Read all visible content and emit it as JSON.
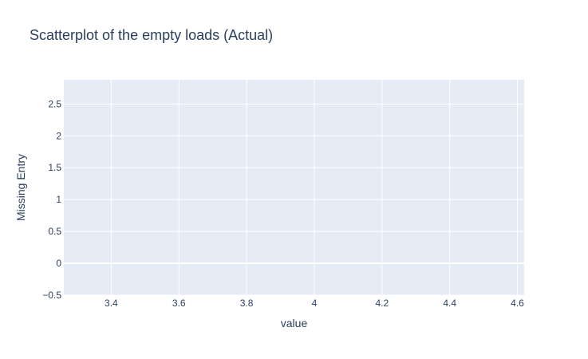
{
  "chart_data": {
    "type": "scatter",
    "title": "Scatterplot of the empty loads (Actual)",
    "xlabel": "value",
    "ylabel": "Missing Entry",
    "xlim": [
      3.26,
      4.62
    ],
    "ylim": [
      -0.5,
      2.88
    ],
    "xticks": [
      "3.4",
      "3.6",
      "3.8",
      "4",
      "4.2",
      "4.4",
      "4.6"
    ],
    "yticks": [
      "−0.5",
      "0",
      "0.5",
      "1",
      "1.5",
      "2",
      "2.5"
    ],
    "grid": true,
    "series": [
      {
        "x": [],
        "y": []
      }
    ],
    "colors": {
      "plot_bg": "#e5ecf6",
      "grid": "#ffffff",
      "text": "#2a3f5f",
      "marker": "#636efa"
    }
  }
}
